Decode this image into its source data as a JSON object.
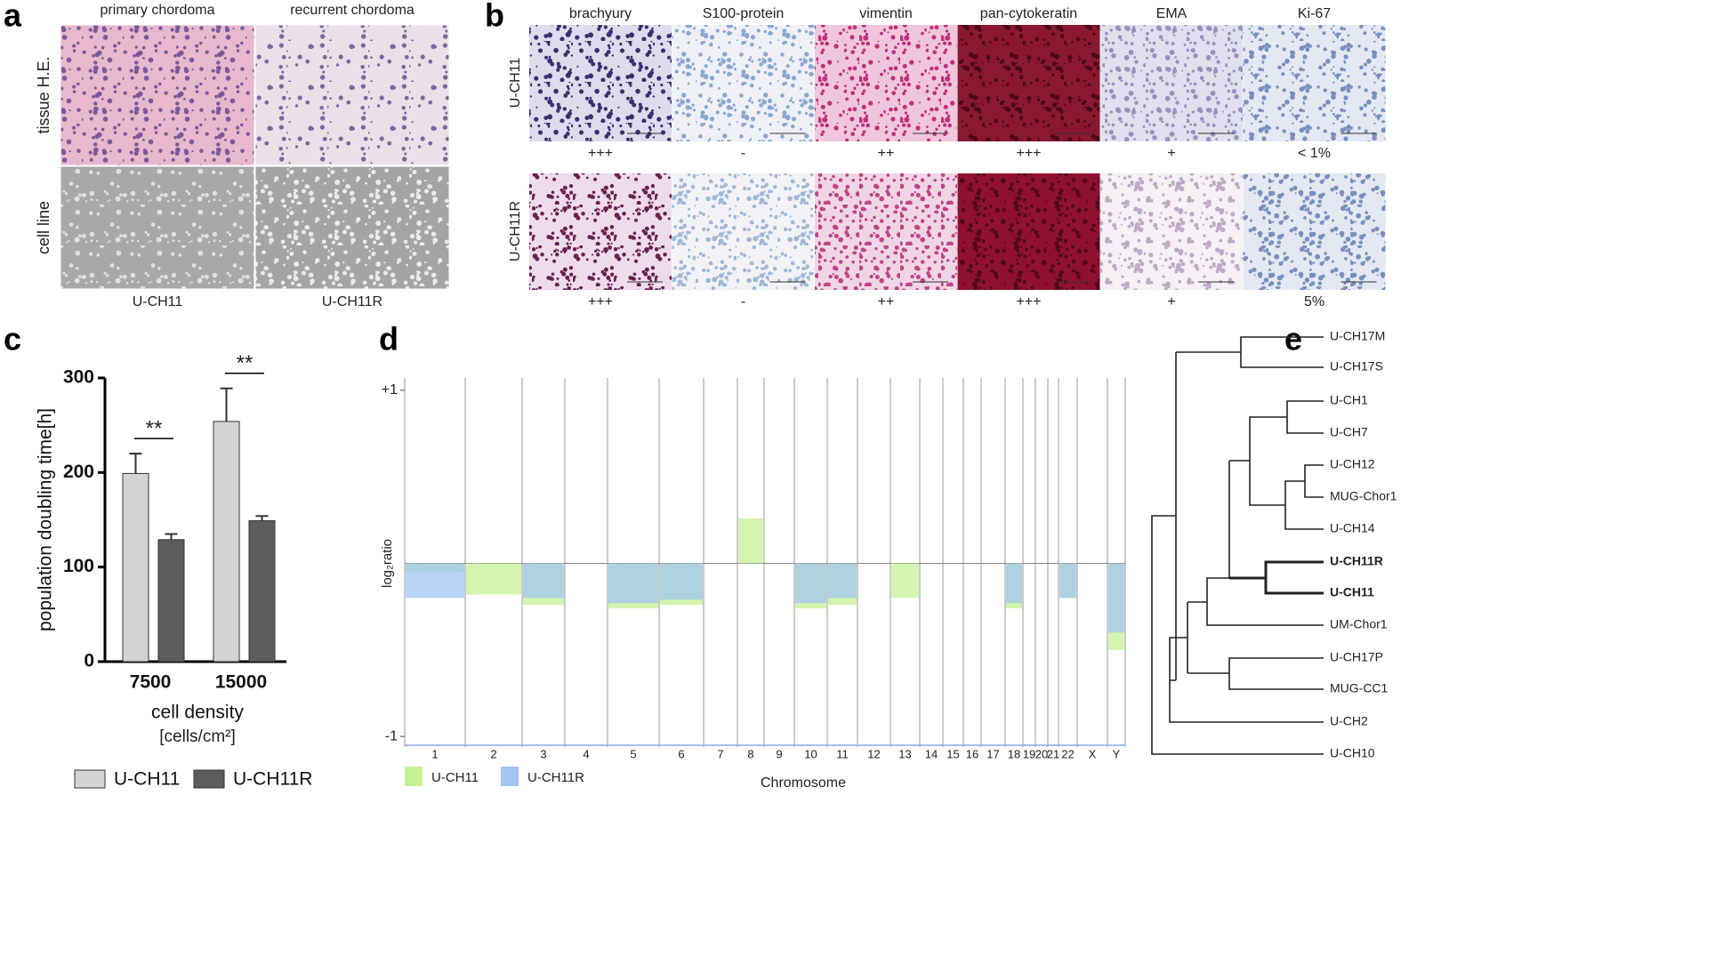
{
  "panel_a": {
    "letter": "a",
    "columns": [
      "primary chordoma",
      "recurrent chordoma"
    ],
    "rows": [
      "tissue H.E.",
      "cell line"
    ],
    "captions": [
      "U-CH11",
      "U-CH11R"
    ]
  },
  "panel_b": {
    "letter": "b",
    "columns": [
      "brachyury",
      "S100-protein",
      "vimentin",
      "pan-cytokeratin",
      "EMA",
      "Ki-67"
    ],
    "rows": [
      "U-CH11",
      "U-CH11R"
    ],
    "scores": [
      [
        "+++",
        "-",
        "++",
        "+++",
        "+",
        "< 1%"
      ],
      [
        "+++",
        "-",
        "++",
        "+++",
        "+",
        "5%"
      ]
    ]
  },
  "chart_data": [
    {
      "type": "bar",
      "panel": "c",
      "ylabel": "population doubling time[h]",
      "xlabel": "cell density",
      "xlabel_unit": "[cells/cm²]",
      "categories": [
        "7500",
        "15000"
      ],
      "ylim": [
        0,
        300
      ],
      "yticks": [
        0,
        100,
        200,
        300
      ],
      "grid": false,
      "series": [
        {
          "name": "U-CH11",
          "color": "#d4d4d4",
          "values": [
            199,
            254
          ],
          "errors": [
            21,
            35
          ]
        },
        {
          "name": "U-CH11R",
          "color": "#5c5c5c",
          "values": [
            129,
            149
          ],
          "errors": [
            6,
            5
          ]
        }
      ],
      "annotations": [
        "**",
        "**"
      ]
    },
    {
      "type": "cnv",
      "panel": "d",
      "ylabel": "log₂ratio",
      "xlabel": "Chromosome",
      "categories": [
        "1",
        "2",
        "3",
        "4",
        "5",
        "6",
        "7",
        "8",
        "9",
        "10",
        "11",
        "12",
        "13",
        "14",
        "15",
        "16",
        "17",
        "18",
        "19",
        "20",
        "21",
        "22",
        "X",
        "Y"
      ],
      "ylim": [
        -1.02,
        1.02
      ],
      "yticks": [
        {
          "value": 1,
          "label": "+1"
        },
        {
          "value": -1,
          "label": "-1"
        }
      ],
      "series": [
        {
          "name": "U-CH11",
          "color": "#c6f294",
          "values": [
            -0.05,
            -0.18,
            -0.24,
            0,
            -0.26,
            -0.24,
            0,
            0.26,
            0,
            -0.26,
            -0.24,
            0,
            -0.2,
            0,
            0,
            0,
            0,
            -0.26,
            0,
            0,
            0,
            -0.2,
            0,
            -0.5
          ]
        },
        {
          "name": "U-CH11R",
          "color": "#a3c6f2",
          "values": [
            -0.2,
            0,
            -0.2,
            0,
            -0.23,
            -0.21,
            0,
            0,
            0,
            -0.23,
            -0.2,
            0,
            0,
            0,
            0,
            0,
            0,
            -0.23,
            0,
            0,
            0,
            -0.2,
            0,
            -0.4
          ]
        }
      ]
    }
  ],
  "panel_e": {
    "letter": "e",
    "leaves": [
      "U-CH17M",
      "U-CH17S",
      "U-CH1",
      "U-CH7",
      "U-CH12",
      "MUG-Chor1",
      "U-CH14",
      "U-CH11R",
      "U-CH11",
      "UM-Chor1",
      "U-CH17P",
      "MUG-CC1",
      "U-CH2",
      "U-CH10"
    ],
    "bold": [
      "U-CH11R",
      "U-CH11"
    ]
  }
}
